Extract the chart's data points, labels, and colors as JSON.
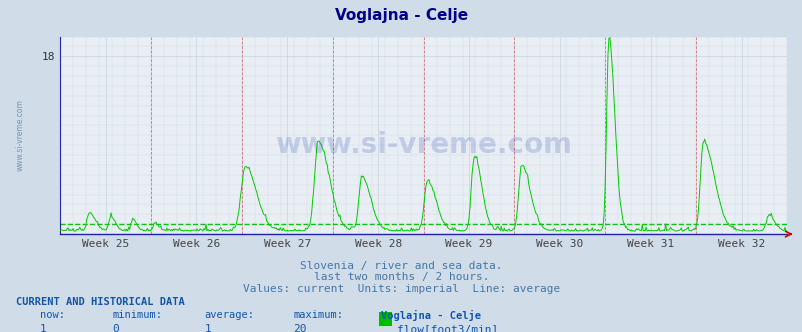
{
  "title": "Voglajna - Celje",
  "background_color": "#d0dce8",
  "plot_bg_color": "#e8eef4",
  "line_color": "#00cc00",
  "avg_line_color": "#00bb00",
  "title_color": "#000088",
  "subtitle_color": "#4477aa",
  "footer_color": "#1155aa",
  "week_labels": [
    "Week 25",
    "Week 26",
    "Week 27",
    "Week 28",
    "Week 29",
    "Week 30",
    "Week 31",
    "Week 32"
  ],
  "subtitle1": "Slovenia / river and sea data.",
  "subtitle2": "last two months / 2 hours.",
  "subtitle3": "Values: current  Units: imperial  Line: average",
  "footer_header": "CURRENT AND HISTORICAL DATA",
  "footer_series": "flow[foot3/min]",
  "watermark": "www.si-vreme.com",
  "avg_value": 1.0,
  "ylim_max": 20,
  "ytick_label": "18",
  "ytick_val": 18
}
